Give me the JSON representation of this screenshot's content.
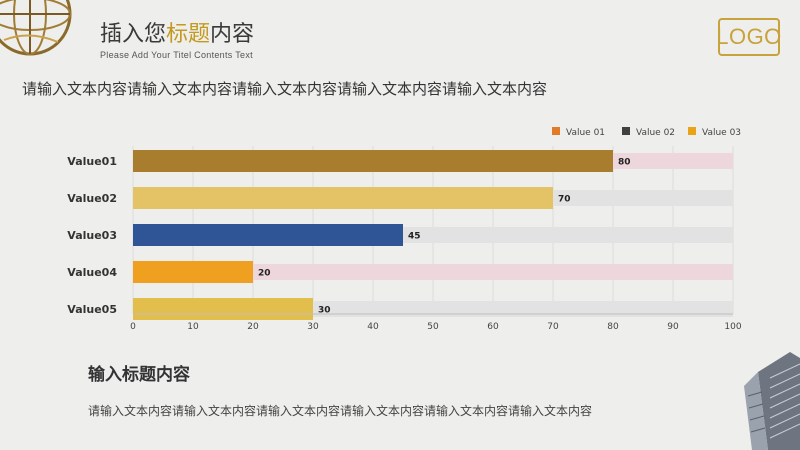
{
  "header": {
    "title_part1": "插入您",
    "title_highlight": "标题",
    "title_part2": "内容",
    "subtitle": "Please Add Your Titel Contents Text",
    "logo_text": "LOGO"
  },
  "lead_text": "请输入文本内容请输入文本内容请输入文本内容请输入文本内容请输入文本内容",
  "chart_data": {
    "type": "bar",
    "orientation": "horizontal",
    "categories": [
      "Value01",
      "Value02",
      "Value03",
      "Value04",
      "Value05"
    ],
    "values": [
      80,
      70,
      45,
      20,
      30
    ],
    "background_max": 100,
    "bar_colors": [
      "#a87d2e",
      "#e3c366",
      "#2f5597",
      "#f0a020",
      "#e2bf4c"
    ],
    "track_colors": [
      "#eed7dc",
      "#e2e2e2",
      "#e2e2e2",
      "#eed7dc",
      "#e2e2e2"
    ],
    "xlim": [
      0,
      100
    ],
    "xticks": [
      0,
      10,
      20,
      30,
      40,
      50,
      60,
      70,
      80,
      90,
      100
    ],
    "grid": true,
    "legend": {
      "position": "top-right",
      "items": [
        {
          "label": "Value 01",
          "color": "#e07b2a"
        },
        {
          "label": "Value 02",
          "color": "#404040"
        },
        {
          "label": "Value 03",
          "color": "#e8a317"
        }
      ]
    }
  },
  "section": {
    "heading": "输入标题内容",
    "body": "请输入文本内容请输入文本内容请输入文本内容请输入文本内容请输入文本内容请输入文本内容"
  }
}
